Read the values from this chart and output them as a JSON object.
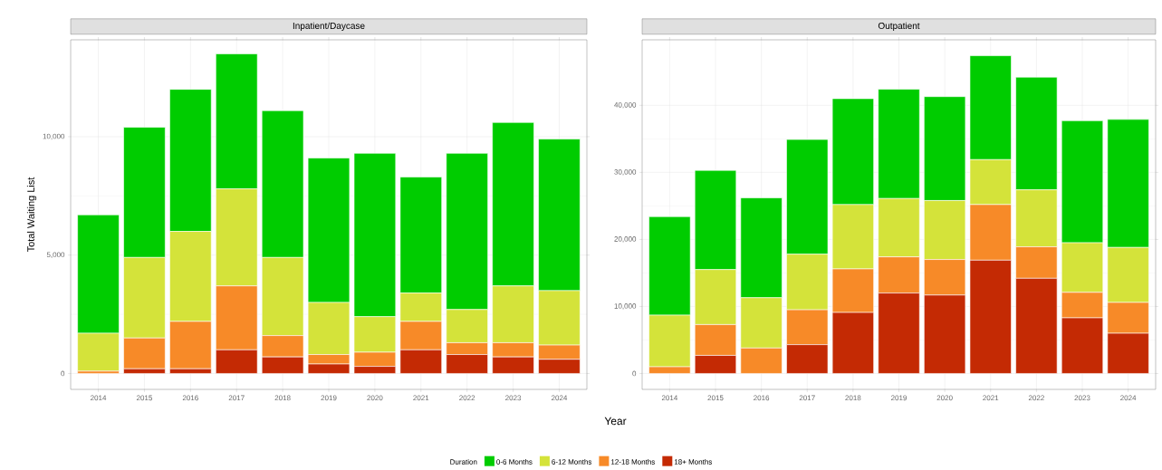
{
  "chart_data": [
    {
      "type": "bar",
      "stacked": true,
      "title": "Inpatient/Daycase",
      "ylabel": "Total Waiting List",
      "xlabel": "Year",
      "legend_title": "Duration",
      "legend": "bottom",
      "grid": true,
      "categories": [
        "2014",
        "2015",
        "2016",
        "2017",
        "2018",
        "2019",
        "2020",
        "2021",
        "2022",
        "2023",
        "2024"
      ],
      "ylim": [
        -671,
        14091
      ],
      "yticks": [
        0,
        {
          "value": 5000,
          "label": "5,000"
        },
        {
          "value": 10000,
          "label": "10,000"
        }
      ],
      "series": [
        {
          "name": "18+ Months",
          "color": "#c42a04",
          "values": [
            0,
            200,
            200,
            1000,
            700,
            400,
            300,
            1000,
            800,
            700,
            600
          ]
        },
        {
          "name": "12-18 Months",
          "color": "#f78a28",
          "values": [
            100,
            1300,
            2000,
            2700,
            900,
            400,
            600,
            1200,
            500,
            600,
            600
          ]
        },
        {
          "name": "6-12 Months",
          "color": "#d4e33a",
          "values": [
            1600,
            3400,
            3800,
            4100,
            3300,
            2200,
            1500,
            1200,
            1400,
            2400,
            2300
          ]
        },
        {
          "name": "0-6 Months",
          "color": "#00cc00",
          "values": [
            5000,
            5500,
            6000,
            5700,
            6200,
            6100,
            6900,
            4900,
            6600,
            6900,
            6400
          ]
        }
      ]
    },
    {
      "type": "bar",
      "stacked": true,
      "title": "Outpatient",
      "grid": true,
      "categories": [
        "2014",
        "2015",
        "2016",
        "2017",
        "2018",
        "2019",
        "2020",
        "2021",
        "2022",
        "2023",
        "2024"
      ],
      "ylim": [
        -2370,
        49770
      ],
      "yticks": [
        0,
        {
          "value": 10000,
          "label": "10,000"
        },
        {
          "value": 20000,
          "label": "20,000"
        },
        {
          "value": 30000,
          "label": "30,000"
        },
        {
          "value": 40000,
          "label": "40,000"
        }
      ],
      "series": [
        {
          "color": "#c42a04",
          "values": [
            0,
            2700,
            0,
            4300,
            9100,
            12000,
            11700,
            16900,
            14200,
            8300,
            6000
          ]
        },
        {
          "color": "#f78a28",
          "values": [
            1000,
            4600,
            3800,
            5200,
            6500,
            5400,
            5300,
            8300,
            4700,
            3800,
            4600
          ]
        },
        {
          "color": "#d4e33a",
          "values": [
            7700,
            8200,
            7500,
            8300,
            9600,
            8700,
            8800,
            6700,
            8500,
            7400,
            8200
          ]
        },
        {
          "color": "#00cc00",
          "values": [
            14700,
            14800,
            14900,
            17100,
            15800,
            16300,
            15500,
            15500,
            16800,
            18200,
            19100
          ]
        }
      ]
    }
  ]
}
